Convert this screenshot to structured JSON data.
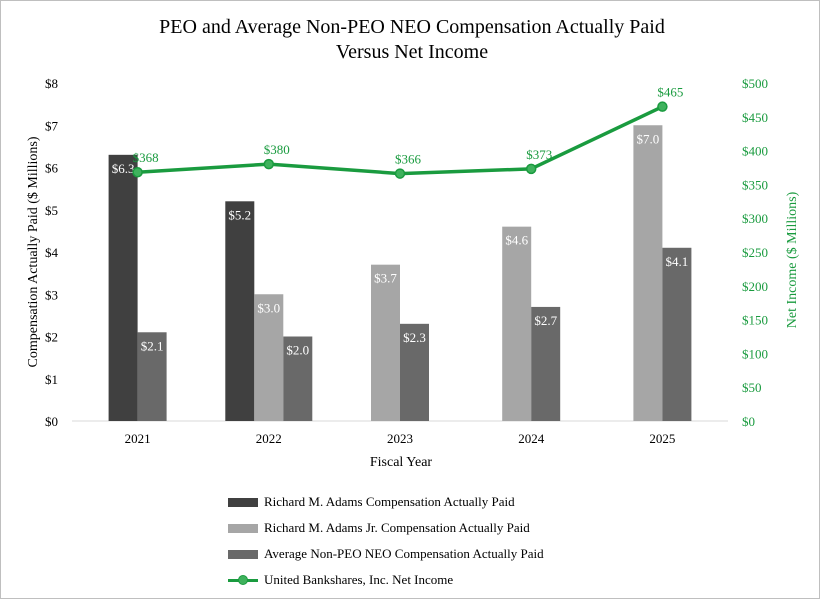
{
  "chart_data": {
    "type": "bar",
    "title_line1": "PEO and Average Non-PEO NEO Compensation Actually Paid",
    "title_line2": "Versus Net Income",
    "xlabel": "Fiscal Year",
    "ylabel": "Compensation Actually Paid ($ Millions)",
    "y2label": "Net Income ($ Millions)",
    "categories": [
      "2021",
      "2022",
      "2023",
      "2024",
      "2025"
    ],
    "ylim": [
      0,
      8
    ],
    "y_ticks": [
      "$0",
      "$1",
      "$2",
      "$3",
      "$4",
      "$5",
      "$6",
      "$7",
      "$8"
    ],
    "y2lim": [
      0,
      500
    ],
    "y2_ticks": [
      "$0",
      "$50",
      "$100",
      "$150",
      "$200",
      "$250",
      "$300",
      "$350",
      "$400",
      "$450",
      "$500"
    ],
    "series": [
      {
        "name": "Richard M. Adams Compensation Actually Paid",
        "kind": "bar",
        "axis": "left",
        "color": "#404040",
        "values": [
          6.3,
          5.2,
          null,
          null,
          null
        ],
        "labels": [
          "$6.3",
          "$5.2",
          null,
          null,
          null
        ]
      },
      {
        "name": "Richard M. Adams Jr. Compensation Actually Paid",
        "kind": "bar",
        "axis": "left",
        "color": "#a6a6a6",
        "values": [
          null,
          3.0,
          3.7,
          4.6,
          7.0
        ],
        "labels": [
          null,
          "$3.0",
          "$3.7",
          "$4.6",
          "$7.0"
        ]
      },
      {
        "name": "Average Non-PEO NEO Compensation Actually Paid",
        "kind": "bar",
        "axis": "left",
        "color": "#696969",
        "values": [
          2.1,
          2.0,
          2.3,
          2.7,
          4.1
        ],
        "labels": [
          "$2.1",
          "$2.0",
          "$2.3",
          "$2.7",
          "$4.1"
        ]
      },
      {
        "name": "United Bankshares, Inc. Net Income",
        "kind": "line",
        "axis": "right",
        "color": "#1a9b3f",
        "values": [
          368,
          380,
          366,
          373,
          465
        ],
        "labels": [
          "$368",
          "$380",
          "$366",
          "$373",
          "$465"
        ]
      }
    ]
  }
}
